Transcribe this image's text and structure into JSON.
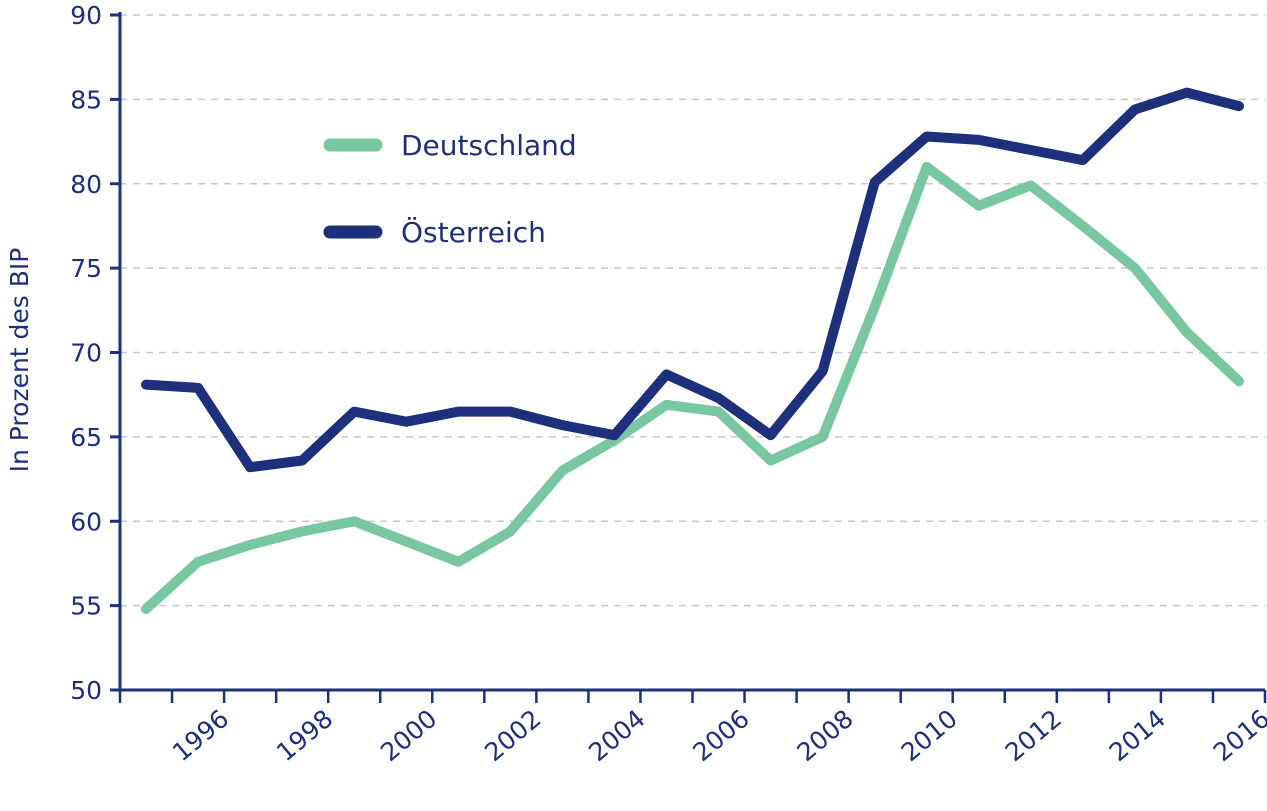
{
  "chart_data": {
    "type": "line",
    "title": "",
    "xlabel": "",
    "ylabel": "In Prozent des BIP",
    "x": [
      1995,
      1996,
      1997,
      1998,
      1999,
      2000,
      2001,
      2002,
      2003,
      2004,
      2005,
      2006,
      2007,
      2008,
      2009,
      2010,
      2011,
      2012,
      2013,
      2014,
      2015,
      2016
    ],
    "x_tick_labels": [
      "1996",
      "1998",
      "2000",
      "2002",
      "2004",
      "2006",
      "2008",
      "2010",
      "2012",
      "2014",
      "2016"
    ],
    "x_tick_values": [
      1996,
      1998,
      2000,
      2002,
      2004,
      2006,
      2008,
      2010,
      2012,
      2014,
      2016
    ],
    "y_ticks": [
      50,
      55,
      60,
      65,
      70,
      75,
      80,
      85,
      90
    ],
    "y_tick_labels": [
      "50",
      "55",
      "60",
      "65",
      "70",
      "75",
      "80",
      "85",
      "90"
    ],
    "ylim": [
      50,
      90
    ],
    "xlim": [
      1994.5,
      2016.5
    ],
    "grid": "horizontal dashed",
    "legend_position": "upper-left",
    "series": [
      {
        "name": "Deutschland",
        "color": "#79c7a1",
        "values": [
          54.8,
          57.6,
          58.6,
          59.4,
          60.0,
          58.8,
          57.6,
          59.4,
          63.0,
          64.8,
          66.9,
          66.5,
          63.6,
          65.0,
          72.7,
          81.0,
          78.7,
          79.9,
          77.5,
          75.0,
          71.2,
          68.3
        ]
      },
      {
        "name": "Österreich",
        "color": "#1e2f7b",
        "values": [
          68.1,
          67.9,
          63.2,
          63.6,
          66.5,
          65.9,
          66.5,
          66.5,
          65.7,
          65.1,
          68.7,
          67.3,
          65.1,
          68.9,
          80.1,
          82.8,
          82.6,
          82.0,
          81.4,
          84.4,
          85.4,
          84.6
        ]
      }
    ]
  }
}
